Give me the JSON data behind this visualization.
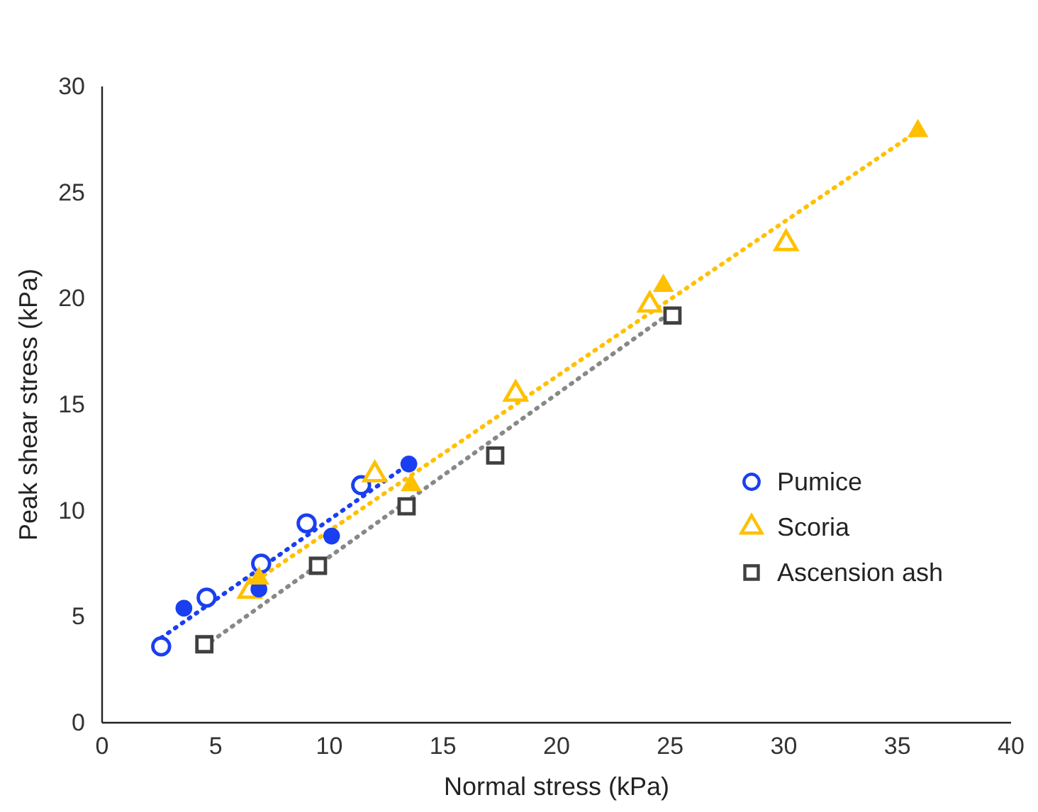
{
  "chart_data": {
    "type": "scatter",
    "xlabel": "Normal stress (kPa)",
    "ylabel": "Peak shear stress (kPa)",
    "xlim": [
      0,
      40
    ],
    "xticks": [
      0,
      5,
      10,
      15,
      20,
      25,
      30,
      35,
      40
    ],
    "ylim": [
      0,
      30
    ],
    "yticks": [
      0,
      5,
      10,
      15,
      20,
      25,
      30
    ],
    "grid": false,
    "legend": "right",
    "series": [
      {
        "name": "Pumice",
        "color": "#1a3ff0",
        "marker": "circle",
        "x": [
          2.6,
          4.6,
          7.0,
          9.0,
          11.4
        ],
        "values": [
          3.6,
          5.9,
          7.5,
          9.4,
          11.2
        ]
      },
      {
        "name": "Scoria",
        "color": "#ffc000",
        "marker": "triangle",
        "x": [
          6.5,
          12.0,
          18.2,
          24.1,
          30.1
        ],
        "values": [
          6.2,
          11.7,
          15.5,
          19.7,
          22.6
        ]
      },
      {
        "name": "Ascension ash",
        "color": "#404040",
        "marker": "square",
        "x": [
          4.5,
          9.5,
          13.4,
          17.3,
          25.1
        ],
        "values": [
          3.7,
          7.4,
          10.2,
          12.6,
          19.2
        ]
      },
      {
        "color": "#1a3ff0",
        "marker": "circle",
        "x": [
          3.6,
          6.9,
          10.1,
          13.5
        ],
        "values": [
          5.4,
          6.3,
          8.8,
          12.2
        ]
      },
      {
        "color": "#ffc000",
        "marker": "triangle",
        "x": [
          6.9,
          13.6,
          24.7,
          35.9
        ],
        "values": [
          6.8,
          11.2,
          20.6,
          27.9
        ]
      },
      {
        "type": "line",
        "color": "#1a3ff0",
        "line_style": "dotted",
        "marker": "none",
        "x": [
          2.6,
          13.5
        ],
        "values": [
          4.0,
          12.2
        ]
      },
      {
        "type": "line",
        "color": "#ffc000",
        "line_style": "dotted",
        "marker": "none",
        "x": [
          6.5,
          35.9
        ],
        "values": [
          6.5,
          27.9
        ]
      },
      {
        "type": "line",
        "color": "#888888",
        "line_style": "dotted",
        "marker": "none",
        "x": [
          4.5,
          25.1
        ],
        "values": [
          3.6,
          19.4
        ]
      }
    ]
  }
}
